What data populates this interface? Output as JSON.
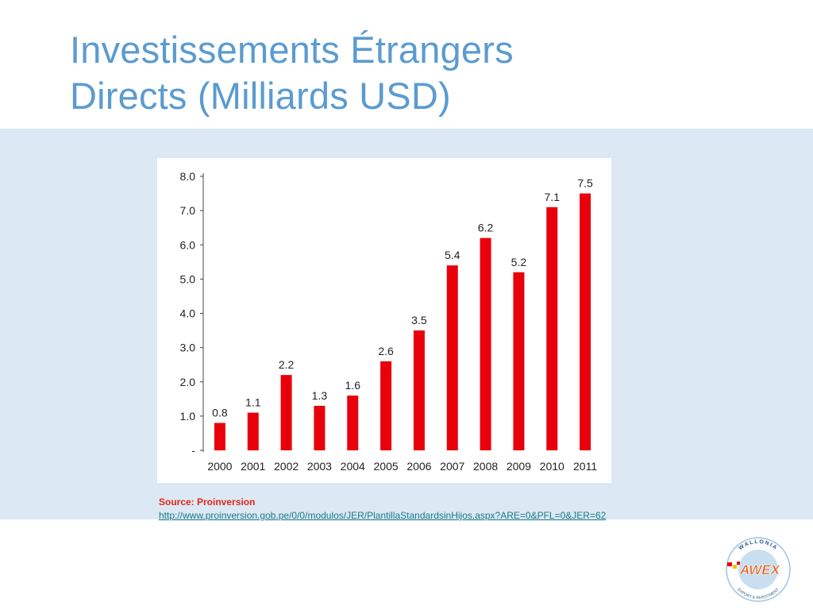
{
  "slide": {
    "title_line1": "Investissements Étrangers",
    "title_line2": "Directs (Milliards USD)",
    "source_label": "Source: Proinversion",
    "source_url": "http://www.proinversion.gob.pe/0/0/modulos/JER/PlantillaStandardsinHijos.aspx?ARE=0&PFL=0&JER=62"
  },
  "logo": {
    "arc_top": "WALLONIA",
    "arc_bottom": "EXPORT & INVESTMENT",
    "center": "AWEX"
  },
  "colors": {
    "title": "#5b9bd0",
    "band": "#dce8f3",
    "bar": "#e8000b",
    "source_label": "#e32619",
    "link": "#1a7a8a"
  },
  "chart_data": {
    "type": "bar",
    "categories": [
      "2000",
      "2001",
      "2002",
      "2003",
      "2004",
      "2005",
      "2006",
      "2007",
      "2008",
      "2009",
      "2010",
      "2011"
    ],
    "values": [
      0.8,
      1.1,
      2.2,
      1.3,
      1.6,
      2.6,
      3.5,
      5.4,
      6.2,
      5.2,
      7.1,
      7.5
    ],
    "value_labels": [
      "0.8",
      "1.1",
      "2.2",
      "1.3",
      "1.6",
      "2.6",
      "3.5",
      "5.4",
      "6.2",
      "5.2",
      "7.1",
      "7.5"
    ],
    "ytick_labels": [
      "-",
      "1.0",
      "2.0",
      "3.0",
      "4.0",
      "5.0",
      "6.0",
      "7.0",
      "8.0"
    ],
    "ylim": [
      0,
      8
    ],
    "grid": false,
    "legend": false
  }
}
